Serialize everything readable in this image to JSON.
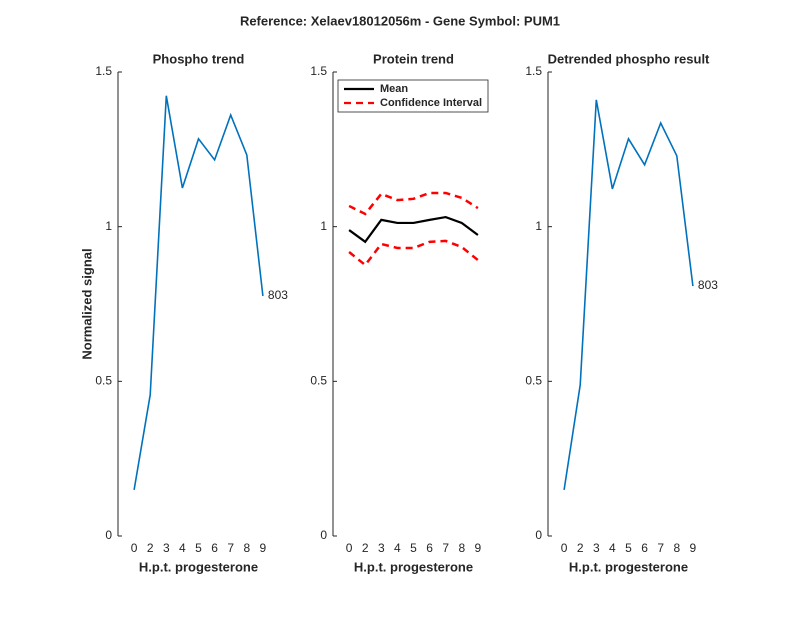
{
  "figure_title": "Reference:  Xelaev18012056m - Gene Symbol:  PUM1",
  "chart_data": [
    {
      "type": "line",
      "title": "Phospho trend",
      "xlabel": "H.p.t. progesterone",
      "ylabel": "Normalized signal",
      "categories": [
        "0",
        "2",
        "3",
        "4",
        "5",
        "6",
        "7",
        "8",
        "9"
      ],
      "series": [
        {
          "name": "Phospho",
          "color": "#0072bd",
          "linestyle": "-",
          "end_label": "803",
          "values": [
            0.149,
            0.456,
            1.423,
            1.125,
            1.284,
            1.216,
            1.361,
            1.232,
            0.776
          ]
        }
      ],
      "ylim": [
        0,
        1.5
      ],
      "yticks": [
        0,
        0.5,
        1,
        1.5
      ]
    },
    {
      "type": "line",
      "title": "Protein trend",
      "xlabel": "H.p.t. progesterone",
      "categories": [
        "0",
        "2",
        "3",
        "4",
        "5",
        "6",
        "7",
        "8",
        "9"
      ],
      "series": [
        {
          "name": "Mean",
          "color": "#000000",
          "linestyle": "-",
          "values": [
            0.989,
            0.951,
            1.022,
            1.012,
            1.012,
            1.022,
            1.031,
            1.012,
            0.973
          ]
        },
        {
          "name": "Confidence Interval",
          "color": "#ff0000",
          "linestyle": "--",
          "values": [
            1.067,
            1.041,
            1.106,
            1.086,
            1.09,
            1.109,
            1.109,
            1.093,
            1.06
          ],
          "lower_values": [
            0.918,
            0.876,
            0.944,
            0.931,
            0.931,
            0.951,
            0.954,
            0.934,
            0.892
          ]
        }
      ],
      "legend": "northwest",
      "ylim": [
        0,
        1.5
      ],
      "yticks": [
        0,
        0.5,
        1,
        1.5
      ]
    },
    {
      "type": "line",
      "title": "Detrended phospho result",
      "xlabel": "H.p.t. progesterone",
      "categories": [
        "0",
        "2",
        "3",
        "4",
        "5",
        "6",
        "7",
        "8",
        "9"
      ],
      "series": [
        {
          "name": "Detrended",
          "color": "#0072bd",
          "linestyle": "-",
          "end_label": "803",
          "values": [
            0.149,
            0.488,
            1.41,
            1.122,
            1.284,
            1.2,
            1.335,
            1.229,
            0.808
          ]
        }
      ],
      "ylim": [
        0,
        1.5
      ],
      "yticks": [
        0,
        0.5,
        1,
        1.5
      ]
    }
  ]
}
